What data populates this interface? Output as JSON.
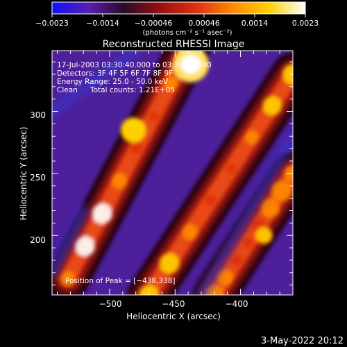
{
  "chart_data": {
    "type": "heatmap",
    "title": "Reconstructed RHESSI Image",
    "xlabel": "Heliocentric X (arcsec)",
    "ylabel": "Heliocentric Y (arcsec)",
    "xlim": [
      -544,
      -360
    ],
    "ylim": [
      152,
      349
    ],
    "x_ticks": [
      -500,
      -450,
      -400
    ],
    "x_tick_labels": [
      "−500",
      "−450",
      "−400"
    ],
    "y_ticks": [
      200,
      250,
      300
    ],
    "y_tick_labels": [
      "200",
      "250",
      "300"
    ],
    "colorbar": {
      "min": -0.0023,
      "max": 0.0023,
      "tick_labels": [
        "−0.0023",
        "−0.0014",
        "−0.00046",
        "0.00046",
        "0.0014",
        "0.0023"
      ],
      "unit": "(photons cm⁻² s⁻¹ asec⁻²)",
      "colors": [
        "#1010ff",
        "#5a1fb0",
        "#2a0a2a",
        "#9a1010",
        "#e03010",
        "#ff8a00",
        "#ffd000",
        "#ffffff"
      ]
    },
    "annotations": {
      "time": "17-Jul-2003 03:30:40.000 to 03:36:38.000",
      "detectors": "Detectors: 3F 4F 5F 6F 7F 8F 9F",
      "energy": "Energy Range: 25.0 - 50.0 keV",
      "clean": "Clean",
      "counts": "Total counts: 1.21E+05",
      "peak": "Position of Peak = [−438,338]"
    },
    "ridges": [
      {
        "x_start": -532,
        "y_start": 165,
        "x_end": -440,
        "y_end": 349,
        "peak_value": 0.0023
      },
      {
        "x_start": -470,
        "y_start": 152,
        "x_end": -360,
        "y_end": 330,
        "peak_value": 0.0016
      },
      {
        "x_start": -420,
        "y_start": 152,
        "x_end": -360,
        "y_end": 250,
        "peak_value": 0.0013
      }
    ],
    "peak_position": [
      -438,
      338
    ]
  },
  "date_stamp": "3-May-2022 20:12"
}
